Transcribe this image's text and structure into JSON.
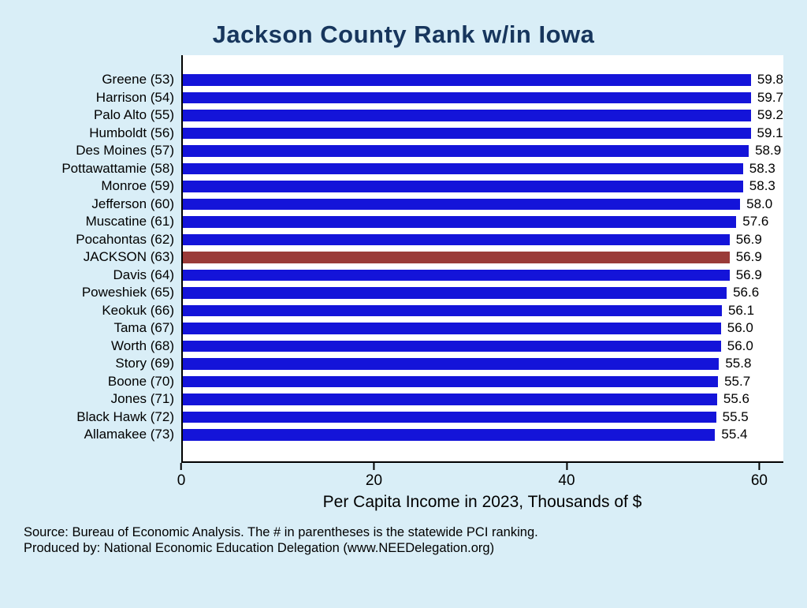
{
  "title": "Jackson County Rank w/in Iowa",
  "chart_data": {
    "type": "bar",
    "orientation": "horizontal",
    "title": "Jackson County Rank w/in Iowa",
    "categories": [
      "Greene (53)",
      "Harrison (54)",
      "Palo Alto (55)",
      "Humboldt (56)",
      "Des Moines (57)",
      "Pottawattamie (58)",
      "Monroe (59)",
      "Jefferson (60)",
      "Muscatine (61)",
      "Pocahontas (62)",
      "JACKSON (63)",
      "Davis (64)",
      "Poweshiek (65)",
      "Keokuk (66)",
      "Tama (67)",
      "Worth (68)",
      "Story (69)",
      "Boone (70)",
      "Jones (71)",
      "Black Hawk (72)",
      "Allamakee (73)"
    ],
    "values": [
      59.8,
      59.7,
      59.2,
      59.1,
      58.9,
      58.3,
      58.3,
      58.0,
      57.6,
      56.9,
      56.9,
      56.9,
      56.6,
      56.1,
      56.0,
      56.0,
      55.8,
      55.7,
      55.6,
      55.5,
      55.4
    ],
    "value_labels": [
      "59.8",
      "59.7",
      "59.2",
      "59.1",
      "58.9",
      "58.3",
      "58.3",
      "58.0",
      "57.6",
      "56.9",
      "56.9",
      "56.9",
      "56.6",
      "56.1",
      "56.0",
      "56.0",
      "55.8",
      "55.7",
      "55.6",
      "55.5",
      "55.4"
    ],
    "highlight_index": 10,
    "highlight_category": "JACKSON (63)",
    "xlabel": "Per Capita Income in 2023, Thousands of $",
    "xticks": [
      0,
      20,
      40,
      60
    ],
    "xlim": [
      0,
      62.5
    ],
    "grid": false,
    "legend": false
  },
  "colors": {
    "background": "#d9eef7",
    "plot_background": "#ffffff",
    "bar": "#1414d9",
    "highlight_bar": "#9a3b38",
    "title": "#17365d",
    "axis": "#000000"
  },
  "footer": {
    "line1": "Source: Bureau of Economic Analysis. The # in parentheses is the statewide PCI ranking.",
    "line2": "Produced by: National Economic Education Delegation (www.NEEDelegation.org)"
  }
}
